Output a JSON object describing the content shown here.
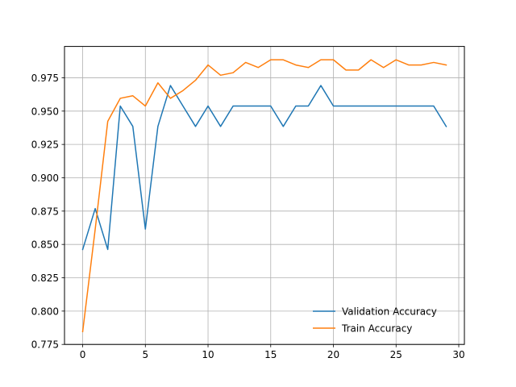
{
  "chart_data": {
    "type": "line",
    "title": "",
    "xlabel": "",
    "ylabel": "",
    "x": [
      0,
      1,
      2,
      3,
      4,
      5,
      6,
      7,
      8,
      9,
      10,
      11,
      12,
      13,
      14,
      15,
      16,
      17,
      18,
      19,
      20,
      21,
      22,
      23,
      24,
      25,
      26,
      27,
      28,
      29
    ],
    "xlim": [
      -1.45,
      30.45
    ],
    "ylim": [
      0.775,
      0.9985
    ],
    "xticks": [
      0,
      5,
      10,
      15,
      20,
      25,
      30
    ],
    "yticks": [
      0.775,
      0.8,
      0.825,
      0.85,
      0.875,
      0.9,
      0.925,
      0.95,
      0.975
    ],
    "xtick_labels": [
      "0",
      "5",
      "10",
      "15",
      "20",
      "25",
      "30"
    ],
    "ytick_labels": [
      "0.775",
      "0.800",
      "0.825",
      "0.850",
      "0.875",
      "0.900",
      "0.925",
      "0.950",
      "0.975"
    ],
    "grid": true,
    "legend_position": "lower-right",
    "series": [
      {
        "name": "Validation Accuracy",
        "color": "#1f77b4",
        "values": [
          0.8462,
          0.8769,
          0.8462,
          0.9538,
          0.9385,
          0.8615,
          0.9385,
          0.9692,
          0.9538,
          0.9385,
          0.9538,
          0.9385,
          0.9538,
          0.9538,
          0.9538,
          0.9538,
          0.9385,
          0.9538,
          0.9538,
          0.9692,
          0.9538,
          0.9538,
          0.9538,
          0.9538,
          0.9538,
          0.9538,
          0.9538,
          0.9538,
          0.9538,
          0.9385
        ]
      },
      {
        "name": "Train Accuracy",
        "color": "#ff7f0e",
        "values": [
          0.7846,
          0.8615,
          0.9423,
          0.9596,
          0.9615,
          0.9538,
          0.9712,
          0.9596,
          0.9654,
          0.9731,
          0.9846,
          0.9769,
          0.9788,
          0.9865,
          0.9827,
          0.9885,
          0.9885,
          0.9846,
          0.9827,
          0.9885,
          0.9885,
          0.9808,
          0.9808,
          0.9885,
          0.9827,
          0.9885,
          0.9846,
          0.9846,
          0.9865,
          0.9846
        ]
      }
    ]
  }
}
